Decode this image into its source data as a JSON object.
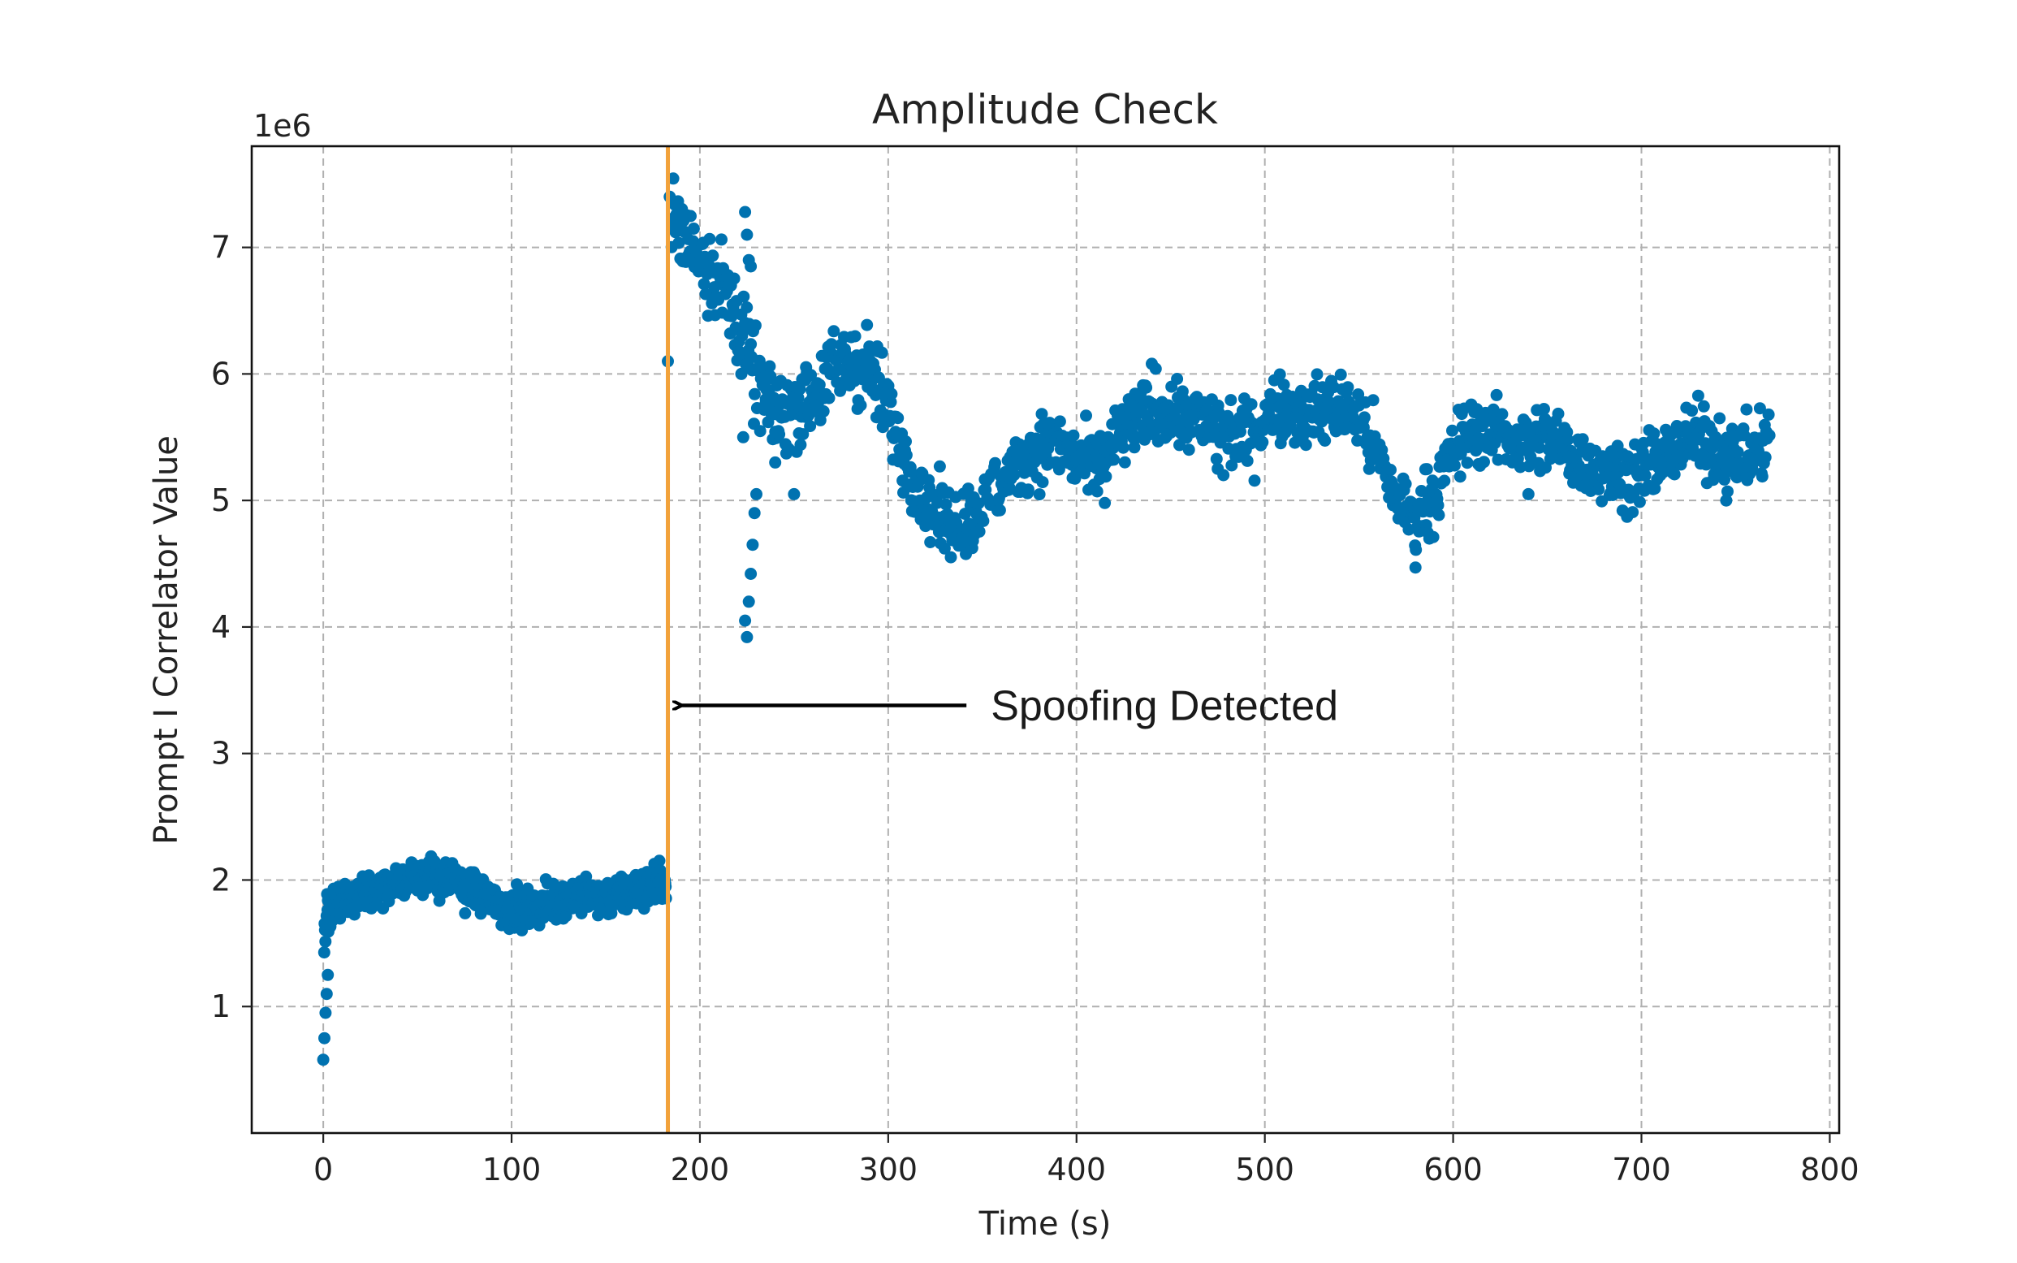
{
  "chart_data": {
    "type": "scatter",
    "title": "Amplitude Check",
    "xlabel": "Time (s)",
    "ylabel": "Prompt I Correlator Value",
    "y_offset_label": "1e6",
    "y_scale": 1000000,
    "xlim": [
      -38,
      805
    ],
    "ylim": [
      0,
      7.8
    ],
    "xticks": [
      0,
      100,
      200,
      300,
      400,
      500,
      600,
      700,
      800
    ],
    "yticks": [
      1,
      2,
      3,
      4,
      5,
      6,
      7
    ],
    "grid": true,
    "grid_style": "dashed",
    "marker_color": "#0072b0",
    "vline": {
      "x": 183,
      "color": "#f2a23a"
    },
    "annotation": {
      "text": "Spoofing Detected",
      "xy": [
        187,
        3.38
      ],
      "xytext": [
        345,
        3.38
      ]
    },
    "series_envelope": [
      [
        0,
        1.45
      ],
      [
        2,
        1.7
      ],
      [
        5,
        1.78
      ],
      [
        10,
        1.82
      ],
      [
        20,
        1.88
      ],
      [
        30,
        1.93
      ],
      [
        40,
        1.98
      ],
      [
        50,
        2.05
      ],
      [
        60,
        2.02
      ],
      [
        70,
        1.98
      ],
      [
        80,
        1.92
      ],
      [
        90,
        1.84
      ],
      [
        100,
        1.76
      ],
      [
        110,
        1.76
      ],
      [
        120,
        1.82
      ],
      [
        130,
        1.86
      ],
      [
        140,
        1.88
      ],
      [
        150,
        1.87
      ],
      [
        160,
        1.88
      ],
      [
        170,
        1.95
      ],
      [
        180,
        2.0
      ],
      [
        182,
        1.95
      ],
      [
        185,
        7.25
      ],
      [
        190,
        7.1
      ],
      [
        200,
        6.95
      ],
      [
        210,
        6.75
      ],
      [
        220,
        6.45
      ],
      [
        225,
        6.2
      ],
      [
        230,
        5.95
      ],
      [
        240,
        5.65
      ],
      [
        250,
        5.75
      ],
      [
        260,
        5.85
      ],
      [
        270,
        6.0
      ],
      [
        280,
        6.1
      ],
      [
        290,
        6.05
      ],
      [
        300,
        5.7
      ],
      [
        310,
        5.3
      ],
      [
        320,
        5.0
      ],
      [
        330,
        4.85
      ],
      [
        340,
        4.82
      ],
      [
        350,
        4.95
      ],
      [
        360,
        5.12
      ],
      [
        370,
        5.3
      ],
      [
        380,
        5.42
      ],
      [
        390,
        5.45
      ],
      [
        400,
        5.3
      ],
      [
        410,
        5.25
      ],
      [
        420,
        5.45
      ],
      [
        430,
        5.6
      ],
      [
        440,
        5.7
      ],
      [
        450,
        5.7
      ],
      [
        460,
        5.65
      ],
      [
        470,
        5.6
      ],
      [
        480,
        5.55
      ],
      [
        490,
        5.5
      ],
      [
        500,
        5.65
      ],
      [
        510,
        5.75
      ],
      [
        520,
        5.7
      ],
      [
        530,
        5.7
      ],
      [
        540,
        5.75
      ],
      [
        550,
        5.65
      ],
      [
        560,
        5.35
      ],
      [
        570,
        5.0
      ],
      [
        580,
        4.85
      ],
      [
        590,
        5.05
      ],
      [
        600,
        5.4
      ],
      [
        610,
        5.55
      ],
      [
        620,
        5.55
      ],
      [
        630,
        5.5
      ],
      [
        640,
        5.45
      ],
      [
        650,
        5.5
      ],
      [
        660,
        5.4
      ],
      [
        670,
        5.3
      ],
      [
        680,
        5.25
      ],
      [
        690,
        5.2
      ],
      [
        700,
        5.25
      ],
      [
        710,
        5.3
      ],
      [
        720,
        5.45
      ],
      [
        730,
        5.5
      ],
      [
        740,
        5.4
      ],
      [
        750,
        5.35
      ],
      [
        760,
        5.35
      ],
      [
        768,
        5.5
      ]
    ],
    "series_outliers": [
      [
        0,
        0.58
      ],
      [
        0.6,
        0.75
      ],
      [
        1.2,
        0.95
      ],
      [
        1.8,
        1.1
      ],
      [
        2.4,
        1.25
      ],
      [
        183,
        6.1
      ],
      [
        184,
        7.4
      ],
      [
        186,
        7.15
      ],
      [
        222,
        6.0
      ],
      [
        223,
        5.5
      ],
      [
        224,
        4.05
      ],
      [
        225,
        3.92
      ],
      [
        226,
        4.2
      ],
      [
        227,
        4.42
      ],
      [
        228,
        4.65
      ],
      [
        229,
        4.9
      ],
      [
        230,
        5.05
      ],
      [
        224,
        7.28
      ],
      [
        225,
        7.1
      ],
      [
        226,
        6.9
      ],
      [
        227,
        6.85
      ],
      [
        235,
        5.8
      ],
      [
        240,
        5.3
      ],
      [
        250,
        5.05
      ],
      [
        330,
        4.62
      ],
      [
        345,
        4.68
      ],
      [
        415,
        4.98
      ],
      [
        440,
        6.08
      ],
      [
        475,
        5.25
      ],
      [
        478,
        5.2
      ],
      [
        505,
        5.95
      ],
      [
        580,
        4.47
      ],
      [
        640,
        5.05
      ],
      [
        690,
        4.92
      ],
      [
        745,
        5.0
      ]
    ]
  }
}
